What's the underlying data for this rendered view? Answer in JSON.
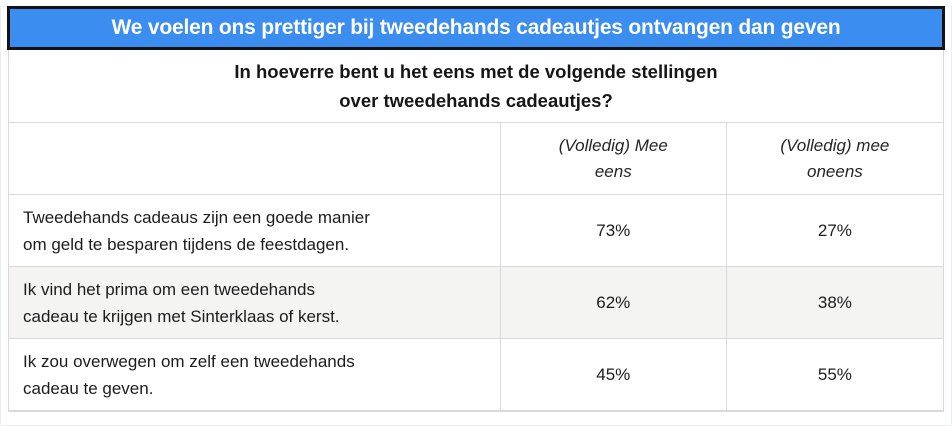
{
  "banner": {
    "title": "We voelen ons prettiger bij tweedehands cadeautjes ontvangen dan geven",
    "bg_color": "#3b8ef0",
    "border_color": "#121212",
    "text_color": "#ffffff"
  },
  "subtitle": {
    "line1": "In hoeverre bent u het eens met de volgende stellingen",
    "line2": "over tweedehands cadeautjes?"
  },
  "style_colors": {
    "table_border": "#d9d9d9",
    "alt_row_bg": "#f4f4f3",
    "text": "#1c1c1e"
  },
  "chart_data": {
    "type": "table",
    "title": "We voelen ons prettiger bij tweedehands cadeautjes ontvangen dan geven",
    "subtitle": "In hoeverre bent u het eens met de volgende stellingen over tweedehands cadeautjes?",
    "columns": [
      {
        "label": "",
        "lines": [
          "",
          ""
        ]
      },
      {
        "label": "(Volledig) Mee eens",
        "lines": [
          "(Volledig) Mee",
          "eens"
        ]
      },
      {
        "label": "(Volledig) mee oneens",
        "lines": [
          "(Volledig) mee",
          "oneens"
        ]
      }
    ],
    "rows": [
      {
        "statement": "Tweedehands cadeaus zijn een goede manier om geld te besparen tijdens de feestdagen.",
        "statement_lines": [
          "Tweedehands cadeaus zijn een goede manier",
          "om geld te besparen tijdens de feestdagen."
        ],
        "agree_pct": 73,
        "disagree_pct": 27,
        "agree_label": "73%",
        "disagree_label": "27%"
      },
      {
        "statement": "Ik vind het prima om een tweedehands cadeau te krijgen met Sinterklaas of kerst.",
        "statement_lines": [
          "Ik vind het prima om een tweedehands",
          "cadeau te krijgen met Sinterklaas of kerst."
        ],
        "agree_pct": 62,
        "disagree_pct": 38,
        "agree_label": "62%",
        "disagree_label": "38%"
      },
      {
        "statement": "Ik zou overwegen om zelf een tweedehands cadeau te geven.",
        "statement_lines": [
          "Ik zou overwegen om zelf een tweedehands",
          "cadeau te geven."
        ],
        "agree_pct": 45,
        "disagree_pct": 55,
        "agree_label": "45%",
        "disagree_label": "55%"
      }
    ]
  }
}
